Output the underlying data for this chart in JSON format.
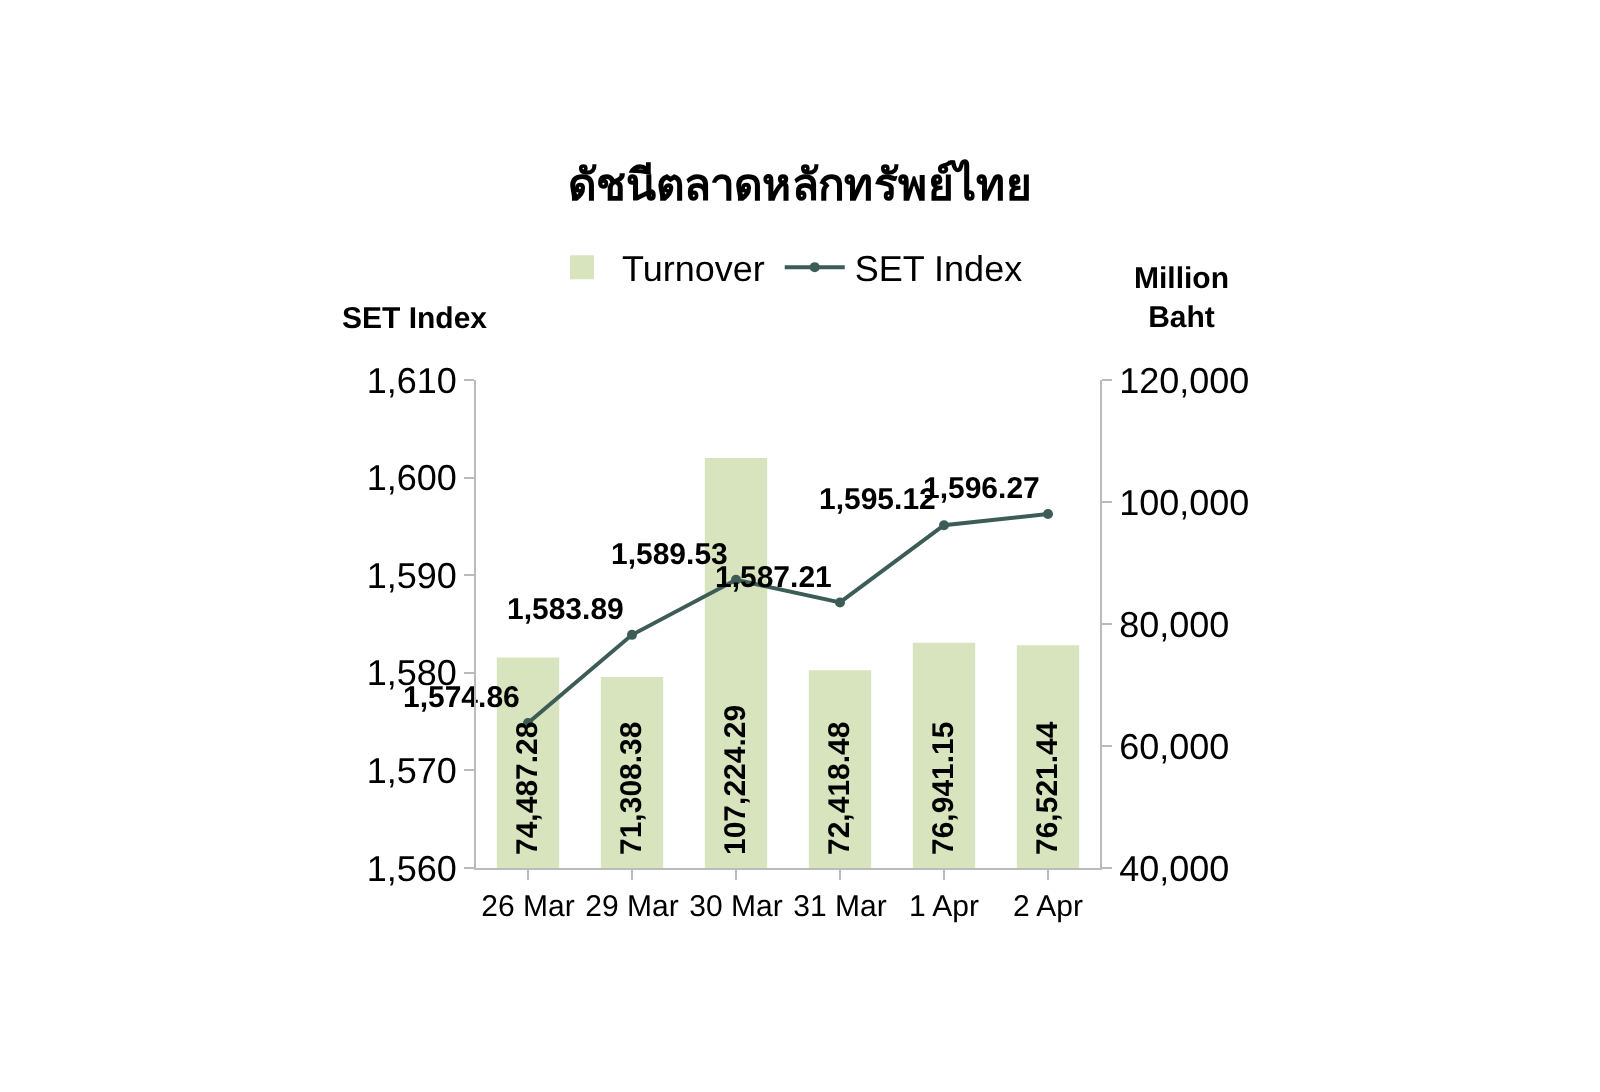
{
  "chart_data": {
    "type": "bar",
    "title": "ดัชนีตลาดหลักทรัพย์ไทย",
    "ylabel": "SET Index",
    "y2label": "Million\nBaht",
    "categories": [
      "26 Mar",
      "29 Mar",
      "30 Mar",
      "31 Mar",
      "1 Apr",
      "2 Apr"
    ],
    "series": [
      {
        "name": "Turnover",
        "axis": "y2",
        "color": "#d7e4bd",
        "values": [
          74487.28,
          71308.38,
          107224.29,
          72418.48,
          76941.15,
          76521.44
        ],
        "value_labels": [
          "74,487.28",
          "71,308.38",
          "107,224.29",
          "72,418.48",
          "76,941.15",
          "76,521.44"
        ]
      },
      {
        "name": "SET Index",
        "type": "line",
        "axis": "y",
        "color": "#3d5c57",
        "marker": "circle",
        "values": [
          1574.86,
          1583.89,
          1589.53,
          1587.21,
          1595.12,
          1596.27
        ],
        "value_labels": [
          "1,574.86",
          "1,583.89",
          "1,589.53",
          "1,587.21",
          "1,595.12",
          "1,596.27"
        ]
      }
    ],
    "ylim": [
      1560,
      1610
    ],
    "yticks": [
      {
        "value": 1560,
        "label": "1,560"
      },
      {
        "value": 1570,
        "label": "1,570"
      },
      {
        "value": 1580,
        "label": "1,580"
      },
      {
        "value": 1590,
        "label": "1,590"
      },
      {
        "value": 1600,
        "label": "1,600"
      },
      {
        "value": 1610,
        "label": "1,610"
      }
    ],
    "y2lim": [
      40000,
      120000
    ],
    "y2ticks": [
      {
        "value": 40000,
        "label": "40,000"
      },
      {
        "value": 60000,
        "label": "60,000"
      },
      {
        "value": 80000,
        "label": "80,000"
      },
      {
        "value": 100000,
        "label": "100,000"
      },
      {
        "value": 120000,
        "label": "120,000"
      }
    ],
    "legend": "top"
  }
}
